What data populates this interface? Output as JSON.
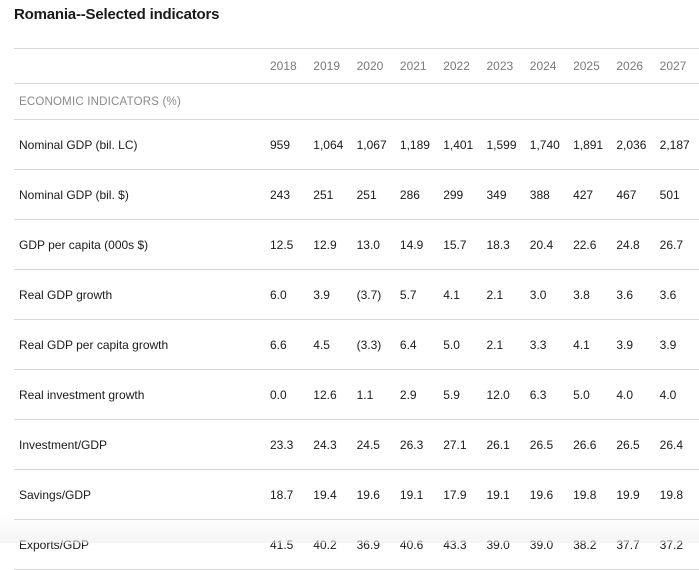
{
  "title": "Romania--Selected indicators",
  "years": [
    "2018",
    "2019",
    "2020",
    "2021",
    "2022",
    "2023",
    "2024",
    "2025",
    "2026",
    "2027"
  ],
  "section_label": "ECONOMIC INDICATORS (%)",
  "rows": [
    {
      "label": "Nominal GDP (bil. LC)",
      "values": [
        "959",
        "1,064",
        "1,067",
        "1,189",
        "1,401",
        "1,599",
        "1,740",
        "1,891",
        "2,036",
        "2,187"
      ]
    },
    {
      "label": "Nominal GDP (bil. $)",
      "values": [
        "243",
        "251",
        "251",
        "286",
        "299",
        "349",
        "388",
        "427",
        "467",
        "501"
      ]
    },
    {
      "label": "GDP per capita (000s $)",
      "values": [
        "12.5",
        "12.9",
        "13.0",
        "14.9",
        "15.7",
        "18.3",
        "20.4",
        "22.6",
        "24.8",
        "26.7"
      ]
    },
    {
      "label": "Real GDP growth",
      "values": [
        "6.0",
        "3.9",
        "(3.7)",
        "5.7",
        "4.1",
        "2.1",
        "3.0",
        "3.8",
        "3.6",
        "3.6"
      ]
    },
    {
      "label": "Real GDP per capita growth",
      "values": [
        "6.6",
        "4.5",
        "(3.3)",
        "6.4",
        "5.0",
        "2.1",
        "3.3",
        "4.1",
        "3.9",
        "3.9"
      ]
    },
    {
      "label": "Real investment growth",
      "values": [
        "0.0",
        "12.6",
        "1.1",
        "2.9",
        "5.9",
        "12.0",
        "6.3",
        "5.0",
        "4.0",
        "4.0"
      ]
    },
    {
      "label": "Investment/GDP",
      "values": [
        "23.3",
        "24.3",
        "24.5",
        "26.3",
        "27.1",
        "26.1",
        "26.5",
        "26.6",
        "26.5",
        "26.4"
      ]
    },
    {
      "label": "Savings/GDP",
      "values": [
        "18.7",
        "19.4",
        "19.6",
        "19.1",
        "17.9",
        "19.1",
        "19.6",
        "19.8",
        "19.9",
        "19.8"
      ]
    },
    {
      "label": "Exports/GDP",
      "values": [
        "41.5",
        "40.2",
        "36.9",
        "40.6",
        "43.3",
        "39.0",
        "39.0",
        "38.2",
        "37.7",
        "37.2"
      ]
    }
  ]
}
